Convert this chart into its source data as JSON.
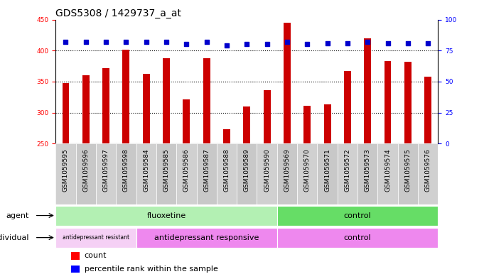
{
  "title": "GDS5308 / 1429737_a_at",
  "samples": [
    "GSM1059595",
    "GSM1059596",
    "GSM1059597",
    "GSM1059598",
    "GSM1059584",
    "GSM1059585",
    "GSM1059586",
    "GSM1059587",
    "GSM1059588",
    "GSM1059589",
    "GSM1059590",
    "GSM1059569",
    "GSM1059570",
    "GSM1059571",
    "GSM1059572",
    "GSM1059573",
    "GSM1059574",
    "GSM1059575",
    "GSM1059576"
  ],
  "counts": [
    348,
    360,
    372,
    401,
    363,
    388,
    321,
    388,
    273,
    310,
    336,
    445,
    311,
    313,
    367,
    420,
    383,
    382,
    358
  ],
  "percentile_ranks": [
    82,
    82,
    82,
    82,
    82,
    82,
    80,
    82,
    79,
    80,
    80,
    82,
    80,
    81,
    81,
    82,
    81,
    81,
    81
  ],
  "bar_color": "#cc0000",
  "dot_color": "#0000cc",
  "ymin": 250,
  "ymax": 450,
  "yticks": [
    250,
    300,
    350,
    400,
    450
  ],
  "y2min": 0,
  "y2max": 100,
  "y2ticks": [
    0,
    25,
    50,
    75,
    100
  ],
  "agent_groups": [
    {
      "label": "fluoxetine",
      "start": 0,
      "end": 11,
      "color": "#b3f0b3"
    },
    {
      "label": "control",
      "start": 11,
      "end": 19,
      "color": "#66dd66"
    }
  ],
  "individual_groups": [
    {
      "label": "antidepressant resistant",
      "start": 0,
      "end": 4,
      "color": "#f5d0f5"
    },
    {
      "label": "antidepressant responsive",
      "start": 4,
      "end": 11,
      "color": "#ee88ee"
    },
    {
      "label": "control",
      "start": 11,
      "end": 19,
      "color": "#ee88ee"
    }
  ],
  "agent_label": "agent",
  "individual_label": "individual",
  "legend_count_label": "count",
  "legend_percentile_label": "percentile rank within the sample",
  "title_fontsize": 10,
  "tick_fontsize": 6.5,
  "label_fontsize": 8,
  "bar_width": 0.35,
  "grid_color": "#000000"
}
